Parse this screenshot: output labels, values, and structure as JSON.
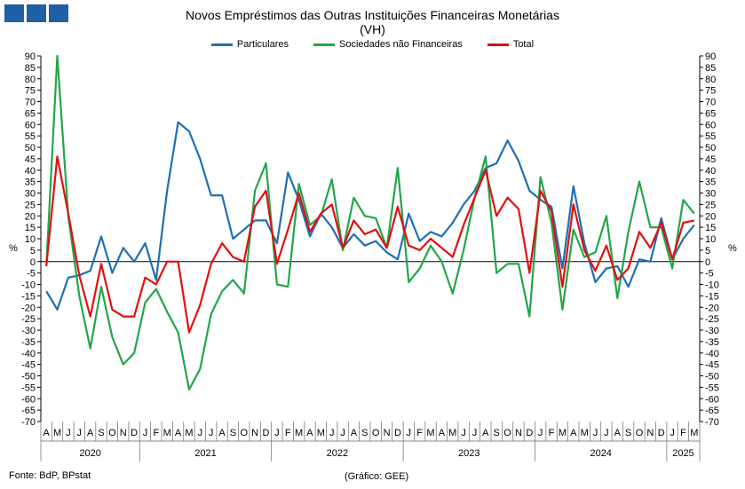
{
  "header": {
    "logo_icon": "bdp-logo-icon",
    "title_line1": "Novos Empréstimos das Outras Instituições Financeiras Monetárias",
    "title_line2": "(VH)"
  },
  "footer": {
    "source": "Fonte: BdP, BPstat",
    "credit": "(Gráfico: GEE)"
  },
  "chart_data": {
    "type": "line",
    "ylabel_left": "%",
    "ylabel_right": "%",
    "ylim": [
      -70,
      90
    ],
    "yticks": [
      90,
      85,
      80,
      75,
      70,
      65,
      60,
      55,
      50,
      45,
      40,
      35,
      30,
      25,
      20,
      15,
      10,
      5,
      0,
      -5,
      -10,
      -15,
      -20,
      -25,
      -30,
      -35,
      -40,
      -45,
      -50,
      -55,
      -60,
      -65,
      -70
    ],
    "grid": false,
    "legend_position": "top",
    "x": [
      "A",
      "M",
      "J",
      "J",
      "A",
      "S",
      "O",
      "N",
      "D",
      "J",
      "F",
      "M",
      "A",
      "M",
      "J",
      "J",
      "A",
      "S",
      "O",
      "N",
      "D",
      "J",
      "F",
      "M",
      "A",
      "M",
      "J",
      "J",
      "A",
      "S",
      "O",
      "N",
      "D",
      "J",
      "F",
      "M",
      "A",
      "M",
      "J",
      "J",
      "A",
      "S",
      "O",
      "N",
      "D",
      "J",
      "F",
      "M",
      "A",
      "M",
      "J",
      "J",
      "A",
      "S",
      "O",
      "N",
      "D",
      "J",
      "F",
      "M"
    ],
    "years": [
      {
        "label": "2020",
        "start": 0,
        "end": 8
      },
      {
        "label": "2021",
        "start": 9,
        "end": 20
      },
      {
        "label": "2022",
        "start": 21,
        "end": 32
      },
      {
        "label": "2023",
        "start": 33,
        "end": 44
      },
      {
        "label": "2024",
        "start": 45,
        "end": 56
      },
      {
        "label": "2025",
        "start": 57,
        "end": 59
      }
    ],
    "series": [
      {
        "name": "Particulares",
        "color": "#1f6fb4",
        "values": [
          -13,
          -21,
          -7,
          -6,
          -4,
          11,
          -5,
          6,
          0,
          8,
          -8,
          31,
          61,
          57,
          45,
          29,
          29,
          10,
          14,
          18,
          18,
          8,
          39,
          27,
          11,
          21,
          15,
          6,
          12,
          7,
          9,
          4,
          1,
          21,
          9,
          13,
          11,
          17,
          25,
          31,
          41,
          43,
          53,
          44,
          31,
          27,
          24,
          -3,
          33,
          8,
          -9,
          -3,
          -2,
          -11,
          1,
          0,
          19,
          1,
          10,
          16
        ]
      },
      {
        "name": "Sociedades não Financeiras",
        "color": "#22a64a",
        "values": [
          -2,
          90,
          20,
          -15,
          -38,
          -11,
          -33,
          -45,
          -40,
          -18,
          -12,
          -22,
          -31,
          -56,
          -47,
          -23,
          -13,
          -8,
          -14,
          31,
          43,
          -10,
          -11,
          34,
          16,
          20,
          36,
          5,
          28,
          20,
          19,
          6,
          41,
          -9,
          -3,
          7,
          0,
          -14,
          5,
          28,
          46,
          -5,
          -1,
          -1,
          -24,
          37,
          17,
          -21,
          14,
          2,
          4,
          20,
          -16,
          13,
          35,
          15,
          15,
          -3,
          27,
          21
        ]
      },
      {
        "name": "Total",
        "color": "#e01010",
        "values": [
          -2,
          46,
          21,
          -6,
          -24,
          -1,
          -21,
          -24,
          -24,
          -7,
          -10,
          0,
          0,
          -31,
          -19,
          -1,
          8,
          2,
          0,
          24,
          31,
          -1,
          14,
          30,
          13,
          21,
          25,
          6,
          18,
          12,
          14,
          6,
          24,
          7,
          5,
          10,
          6,
          2,
          16,
          28,
          40,
          20,
          28,
          23,
          -5,
          31,
          22,
          -11,
          25,
          5,
          -4,
          7,
          -8,
          -3,
          13,
          6,
          17,
          1,
          17,
          18
        ]
      }
    ]
  }
}
